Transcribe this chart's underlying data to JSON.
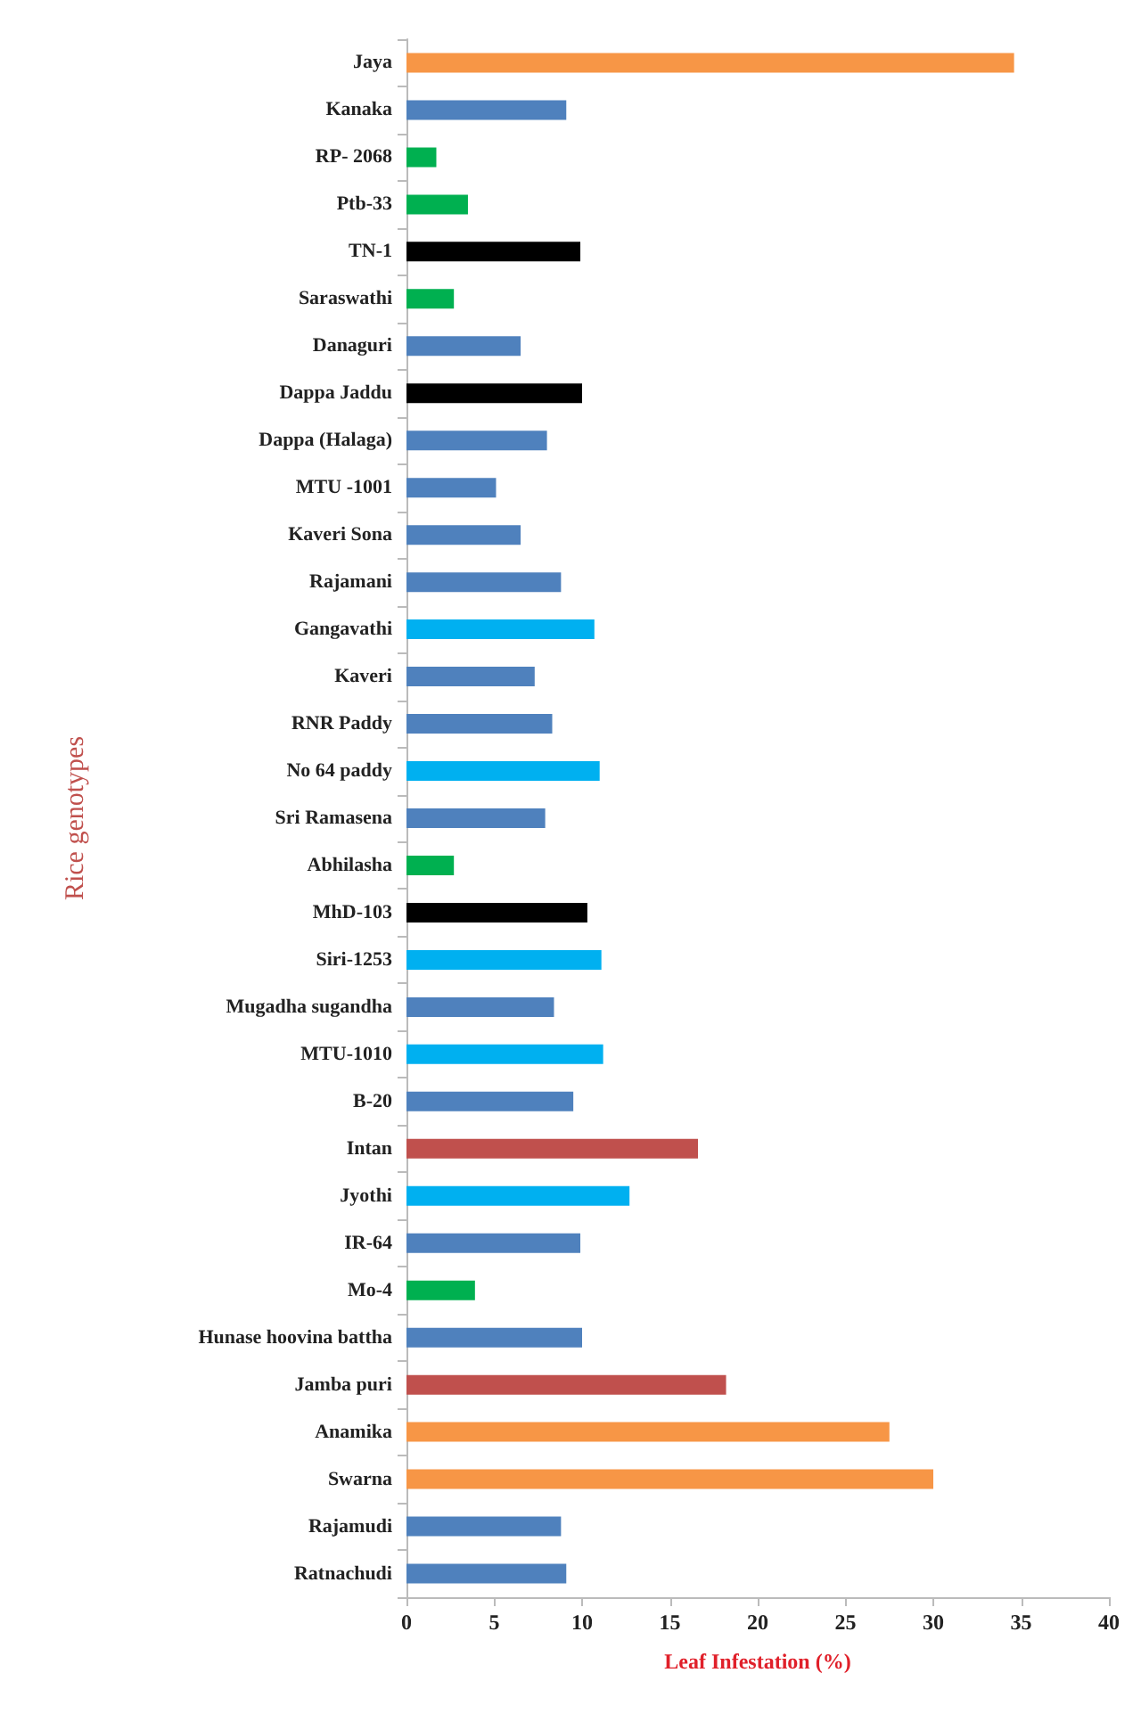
{
  "chart_data": {
    "type": "bar",
    "orientation": "horizontal",
    "xlabel": "Leaf Infestation (%)",
    "ylabel": "Rice genotypes",
    "categories": [
      "Jaya",
      "Kanaka",
      "RP- 2068",
      "Ptb-33",
      "TN-1",
      "Saraswathi",
      "Danaguri",
      "Dappa Jaddu",
      "Dappa (Halaga)",
      "MTU -1001",
      "Kaveri Sona",
      "Rajamani",
      "Gangavathi",
      "Kaveri",
      "RNR Paddy",
      "No 64 paddy",
      "Sri Ramasena",
      "Abhilasha",
      "MhD-103",
      "Siri-1253",
      "Mugadha sugandha",
      "MTU-1010",
      "B-20",
      "Intan",
      "Jyothi",
      "IR-64",
      "Mo-4",
      "Hunase hoovina battha",
      "Jamba puri",
      "Anamika",
      "Swarna",
      "Rajamudi",
      "Ratnachudi"
    ],
    "values": [
      34.6,
      9.1,
      1.7,
      3.5,
      9.9,
      2.7,
      6.5,
      10.0,
      8.0,
      5.1,
      6.5,
      8.8,
      10.7,
      7.3,
      8.3,
      11.0,
      7.9,
      2.7,
      10.3,
      11.1,
      8.4,
      11.2,
      9.5,
      16.6,
      12.7,
      9.9,
      3.9,
      10.0,
      18.2,
      27.5,
      30.0,
      8.8,
      9.1
    ],
    "colors": [
      "#f79646",
      "#4f81bd",
      "#00b050",
      "#00b050",
      "#000000",
      "#00b050",
      "#4f81bd",
      "#000000",
      "#4f81bd",
      "#4f81bd",
      "#4f81bd",
      "#4f81bd",
      "#00b0f0",
      "#4f81bd",
      "#4f81bd",
      "#00b0f0",
      "#4f81bd",
      "#00b050",
      "#000000",
      "#00b0f0",
      "#4f81bd",
      "#00b0f0",
      "#4f81bd",
      "#c0504d",
      "#00b0f0",
      "#4f81bd",
      "#00b050",
      "#4f81bd",
      "#c0504d",
      "#f79646",
      "#f79646",
      "#4f81bd",
      "#4f81bd"
    ],
    "xlim": [
      0,
      40
    ],
    "xticks": [
      0,
      5,
      10,
      15,
      20,
      25,
      30,
      35,
      40
    ],
    "grid": false
  }
}
